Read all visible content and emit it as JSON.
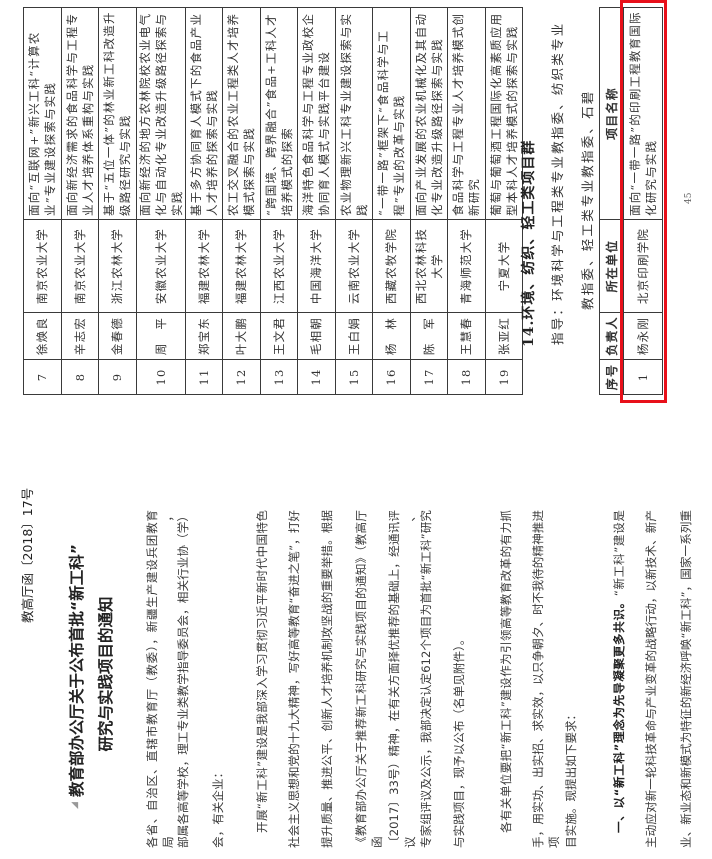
{
  "top_page": {
    "table_rows": [
      {
        "no": "7",
        "name": "徐焕良",
        "unit": "南京农业大学",
        "project": "面向“互联网+”新兴工科“计算农业”专业建设探索与实践"
      },
      {
        "no": "8",
        "name": "辛志宏",
        "unit": "南京农业大学",
        "project": "面向新经济需求的食品科学与工程专业人才培养体系重构与实践"
      },
      {
        "no": "9",
        "name": "金春德",
        "unit": "浙江农林大学",
        "project": "基于“五位一体”的林业新工科改造升级路径研究与实践"
      },
      {
        "no": "10",
        "name": "周　平",
        "unit": "安徽农业大学",
        "project": "面向新经济的地方农林院校农业电气化与自动化专业改造升级路径探索与实践"
      },
      {
        "no": "11",
        "name": "郑宝东",
        "unit": "福建农林大学",
        "project": "基于多方协同育人模式下的食品产业人才培养的探索与实践"
      },
      {
        "no": "12",
        "name": "叶大鹏",
        "unit": "福建农林大学",
        "project": "农工交叉融合的农业工程类人才培养模式探索与实践"
      },
      {
        "no": "13",
        "name": "王文君",
        "unit": "江西农业大学",
        "project": "“跨国境、跨界融合”食品+工科人才培养模式的探索"
      },
      {
        "no": "14",
        "name": "毛相朝",
        "unit": "中国海洋大学",
        "project": "海洋特色食品科学与工程专业政校企协同育人模式与实践平台建设"
      },
      {
        "no": "15",
        "name": "王白娟",
        "unit": "云南农业大学",
        "project": "农业物理新兴工科专业建设探索与实践"
      },
      {
        "no": "16",
        "name": "杨　林",
        "unit": "西藏农牧学院",
        "project": "“一带一路”框架下“食品科学与工程”专业的改革与实践"
      },
      {
        "no": "17",
        "name": "陈　军",
        "unit": "西北农林科技大学",
        "project": "面向产业发展的农业机械化及其自动化专业改造升级路径探索与实践"
      },
      {
        "no": "18",
        "name": "王慧春",
        "unit": "青海师范大学",
        "project": "食品科学与工程专业人才培养模式创新研究"
      },
      {
        "no": "19",
        "name": "张亚红",
        "unit": "宁夏大学",
        "project": "葡萄与葡萄酒工程国际化高素质应用型本科人才培养模式的探索与实践"
      }
    ],
    "section_heading": "14.环境、纺织、轻工类项目群",
    "guidance_line1": "指导：环境科学与工程类专业教指委、纺织类专业",
    "guidance_line2": "教指委、轻工类专业教指委、石碧",
    "table2_headers": {
      "no": "序号",
      "name": "负责人",
      "unit": "所在单位",
      "project": "项目名称"
    },
    "table2_rows": [
      {
        "no": "1",
        "name": "杨永刚",
        "unit": "北京印刷学院",
        "project": "面向“一带一路”的印刷工程教育国际化研究与实践"
      }
    ],
    "highlight_color": "#e8101a",
    "page_number": "45"
  },
  "bottom_page": {
    "doc_number": "教高厅函〔2018〕17号",
    "title_line1": "教育部办公厅关于公布首批“新工科”",
    "title_line2": "研究与实践项目的通知",
    "lines": [
      {
        "text": "各省、自治区、直辖市教育厅（教委），新疆生产建设兵团教育局，"
      },
      {
        "text": "部属各高等学校，理工专业类教学指导委员会，相关行业协（学）"
      },
      {
        "text": "会，有关企业："
      },
      {
        "text": "开展“新工科”建设是我部深入学习贯彻习近平新时代中国特色"
      },
      {
        "text": "社会主义思想和党的十九大精神，写好高等教育“奋进之笔”，打好"
      },
      {
        "text": "提升质量、推进公平、创新人才培养机制攻坚战的重要举措。根据"
      },
      {
        "text": "《教育部办公厅关于推荐新工科研究与实践项目的通知》（教高厅函"
      },
      {
        "text": "〔2017〕33号）精神，在有关方面择优推荐的基础上，经通讯评议、"
      },
      {
        "text": "专家组评议及公示，我部决定认定612个项目为首批“新工科”研究"
      },
      {
        "text": "与实践项目，现予以公布（名单见附件）。"
      },
      {
        "text": "各有关单位要把“新工科”建设作为引领高等教育改革的有力抓"
      },
      {
        "text": "手，用实功、出实招、求实效，以只争朝夕、时不我待的精神推进项"
      },
      {
        "text": "目实施。现提出如下要求："
      },
      {
        "bold": "一、以“新工科”理念为先导凝聚更多共识。",
        "text": "“新工科”建设是"
      },
      {
        "text": "主动应对新一轮科技革命与产业变革的战略行动，以新技术、新产"
      },
      {
        "text": "业、新业态和新模式为特征的新经济呼唤“新工科”，国家一系列重"
      }
    ]
  }
}
